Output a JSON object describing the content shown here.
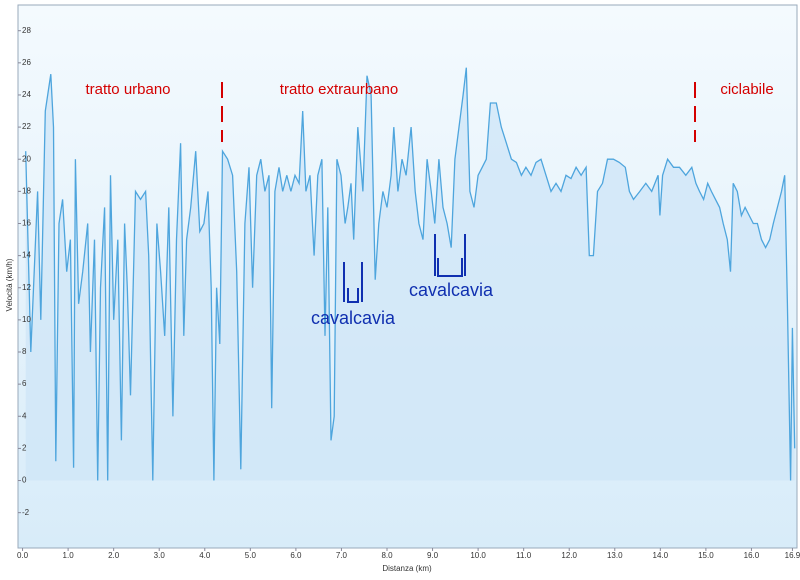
{
  "chart_data": {
    "type": "area",
    "x_label": "Distanza  (km)",
    "y_label": "Velocità (km/h)",
    "annotations": [
      "tratto urbano",
      "tratto extraurbano",
      "ciclabile",
      "cavalcavia",
      "cavalcavia"
    ],
    "x": [
      0.07,
      0.18,
      0.33,
      0.4,
      0.5,
      0.62,
      0.68,
      0.73,
      0.8,
      0.88,
      0.97,
      1.05,
      1.12,
      1.16,
      1.23,
      1.32,
      1.43,
      1.49,
      1.58,
      1.65,
      1.71,
      1.8,
      1.87,
      1.93,
      2.0,
      2.09,
      2.17,
      2.24,
      2.3,
      2.37,
      2.48,
      2.59,
      2.7,
      2.77,
      2.86,
      2.95,
      3.03,
      3.12,
      3.21,
      3.3,
      3.38,
      3.47,
      3.54,
      3.6,
      3.69,
      3.8,
      3.89,
      3.98,
      4.07,
      4.14,
      4.2,
      4.26,
      4.33,
      4.39,
      4.5,
      4.61,
      4.7,
      4.79,
      4.88,
      4.97,
      5.05,
      5.14,
      5.23,
      5.32,
      5.41,
      5.47,
      5.54,
      5.63,
      5.71,
      5.8,
      5.89,
      5.98,
      6.07,
      6.15,
      6.22,
      6.31,
      6.4,
      6.48,
      6.57,
      6.64,
      6.7,
      6.77,
      6.84,
      6.9,
      6.99,
      7.08,
      7.14,
      7.21,
      7.27,
      7.36,
      7.47,
      7.56,
      7.65,
      7.74,
      7.82,
      7.91,
      8.0,
      8.09,
      8.15,
      8.24,
      8.33,
      8.42,
      8.53,
      8.62,
      8.7,
      8.79,
      8.88,
      8.97,
      9.05,
      9.14,
      9.23,
      9.32,
      9.41,
      9.49,
      9.58,
      9.67,
      9.74,
      9.82,
      9.91,
      10.0,
      10.09,
      10.18,
      10.27,
      10.4,
      10.51,
      10.62,
      10.73,
      10.84,
      10.95,
      11.05,
      11.16,
      11.27,
      11.38,
      11.49,
      11.6,
      11.71,
      11.82,
      11.93,
      12.04,
      12.15,
      12.26,
      12.37,
      12.44,
      12.53,
      12.62,
      12.73,
      12.84,
      12.97,
      13.1,
      13.23,
      13.32,
      13.41,
      13.55,
      13.68,
      13.81,
      13.95,
      13.99,
      14.05,
      14.16,
      14.29,
      14.42,
      14.56,
      14.69,
      14.78,
      14.86,
      14.95,
      15.04,
      15.12,
      15.21,
      15.3,
      15.38,
      15.47,
      15.54,
      15.6,
      15.69,
      15.78,
      15.86,
      15.95,
      16.04,
      16.13,
      16.22,
      16.31,
      16.4,
      16.48,
      16.57,
      16.66,
      16.73,
      16.79,
      16.86,
      16.9,
      16.95
    ],
    "values": [
      20.5,
      8,
      18,
      10,
      23,
      25.3,
      22,
      1.2,
      16,
      17.5,
      13,
      15,
      0.8,
      20,
      11,
      13,
      16,
      8,
      15,
      0,
      12,
      17,
      0,
      19,
      10,
      15,
      2.5,
      16,
      12,
      5.3,
      18,
      17.5,
      18,
      14,
      0,
      16,
      13,
      9,
      17,
      4,
      15,
      21,
      9,
      15,
      17,
      20.5,
      15.5,
      16,
      18,
      12,
      0,
      12,
      8.5,
      20.5,
      20,
      19,
      13,
      0.7,
      16,
      19.5,
      12,
      19,
      20,
      18,
      19,
      4.5,
      18,
      19.5,
      18,
      19,
      18,
      19,
      18.5,
      23,
      18,
      19,
      14,
      19,
      20,
      9,
      17,
      2.5,
      4,
      20,
      19,
      16,
      17,
      18.5,
      15,
      22,
      18,
      25.2,
      24,
      12.5,
      16,
      18,
      17,
      19,
      22,
      18,
      20,
      19,
      22,
      18,
      16,
      15,
      20,
      18,
      16,
      20,
      17,
      16,
      14.5,
      20,
      22,
      24,
      25.7,
      18,
      17,
      19,
      19.5,
      20,
      23.5,
      23.5,
      22,
      21,
      20,
      19.8,
      19,
      19.5,
      19,
      19.8,
      20,
      19,
      18,
      18.5,
      18,
      19,
      18.8,
      19.5,
      19,
      19.5,
      14,
      14,
      18,
      18.5,
      20,
      20,
      19.8,
      19.5,
      18,
      17.5,
      18,
      18.5,
      18,
      19,
      16.5,
      19,
      20,
      19.5,
      19.5,
      19,
      19.5,
      18.5,
      18,
      17.5,
      18.5,
      18,
      17.5,
      17,
      16,
      15,
      13,
      18.5,
      18,
      16.5,
      17,
      16.5,
      16,
      16,
      15,
      14.5,
      15,
      16,
      17,
      18,
      19,
      11,
      0,
      9.5,
      2
    ],
    "color": "#4ea5dd",
    "fill": "#cfe6f7",
    "xlim": [
      -0.1,
      17.0
    ],
    "ylim": [
      -4.2,
      29.6
    ],
    "xticks": [
      {
        "value": 0,
        "label": "0.0"
      },
      {
        "value": 1,
        "label": "1.0"
      },
      {
        "value": 2,
        "label": "2.0"
      },
      {
        "value": 3,
        "label": "3.0"
      },
      {
        "value": 4,
        "label": "4.0"
      },
      {
        "value": 5,
        "label": "5.0"
      },
      {
        "value": 6,
        "label": "6.0"
      },
      {
        "value": 7,
        "label": "7.0"
      },
      {
        "value": 8,
        "label": "8.0"
      },
      {
        "value": 9,
        "label": "9.0"
      },
      {
        "value": 10,
        "label": "10.0"
      },
      {
        "value": 11,
        "label": "11.0"
      },
      {
        "value": 12,
        "label": "12.0"
      },
      {
        "value": 13,
        "label": "13.0"
      },
      {
        "value": 14,
        "label": "14.0"
      },
      {
        "value": 15,
        "label": "15.0"
      },
      {
        "value": 16,
        "label": "16.0"
      },
      {
        "value": 16.9,
        "label": "16.9"
      }
    ],
    "yticks": [
      28,
      26,
      24,
      22,
      20,
      18,
      16,
      14,
      12,
      10,
      8,
      6,
      4,
      2,
      0,
      -2
    ]
  }
}
